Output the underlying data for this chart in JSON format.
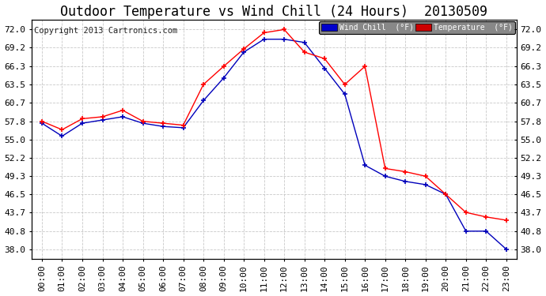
{
  "title": "Outdoor Temperature vs Wind Chill (24 Hours)  20130509",
  "copyright": "Copyright 2013 Cartronics.com",
  "background_color": "#ffffff",
  "plot_background": "#ffffff",
  "grid_color": "#bbbbbb",
  "x_labels": [
    "00:00",
    "01:00",
    "02:00",
    "03:00",
    "04:00",
    "05:00",
    "06:00",
    "07:00",
    "08:00",
    "09:00",
    "10:00",
    "11:00",
    "12:00",
    "13:00",
    "14:00",
    "15:00",
    "16:00",
    "17:00",
    "18:00",
    "19:00",
    "20:00",
    "21:00",
    "22:00",
    "23:00"
  ],
  "y_ticks": [
    38.0,
    40.8,
    43.7,
    46.5,
    49.3,
    52.2,
    55.0,
    57.8,
    60.7,
    63.5,
    66.3,
    69.2,
    72.0
  ],
  "ylim": [
    36.5,
    73.5
  ],
  "temperature": [
    57.8,
    56.5,
    58.2,
    58.5,
    59.5,
    57.8,
    57.5,
    57.2,
    63.5,
    66.3,
    69.0,
    71.5,
    72.0,
    68.5,
    67.5,
    63.5,
    66.3,
    50.5,
    50.0,
    49.3,
    46.5,
    43.7,
    43.0,
    42.5
  ],
  "wind_chill": [
    57.5,
    55.5,
    57.5,
    58.0,
    58.5,
    57.5,
    57.0,
    56.8,
    61.0,
    64.5,
    68.5,
    70.5,
    70.5,
    70.0,
    66.0,
    62.0,
    51.0,
    49.3,
    48.5,
    48.0,
    46.5,
    40.8,
    40.8,
    38.0
  ],
  "temp_color": "#ff0000",
  "wind_color": "#0000bb",
  "legend_wind_bg": "#0000cc",
  "legend_temp_bg": "#cc0000",
  "title_fontsize": 12,
  "tick_fontsize": 8,
  "copyright_fontsize": 7.5
}
